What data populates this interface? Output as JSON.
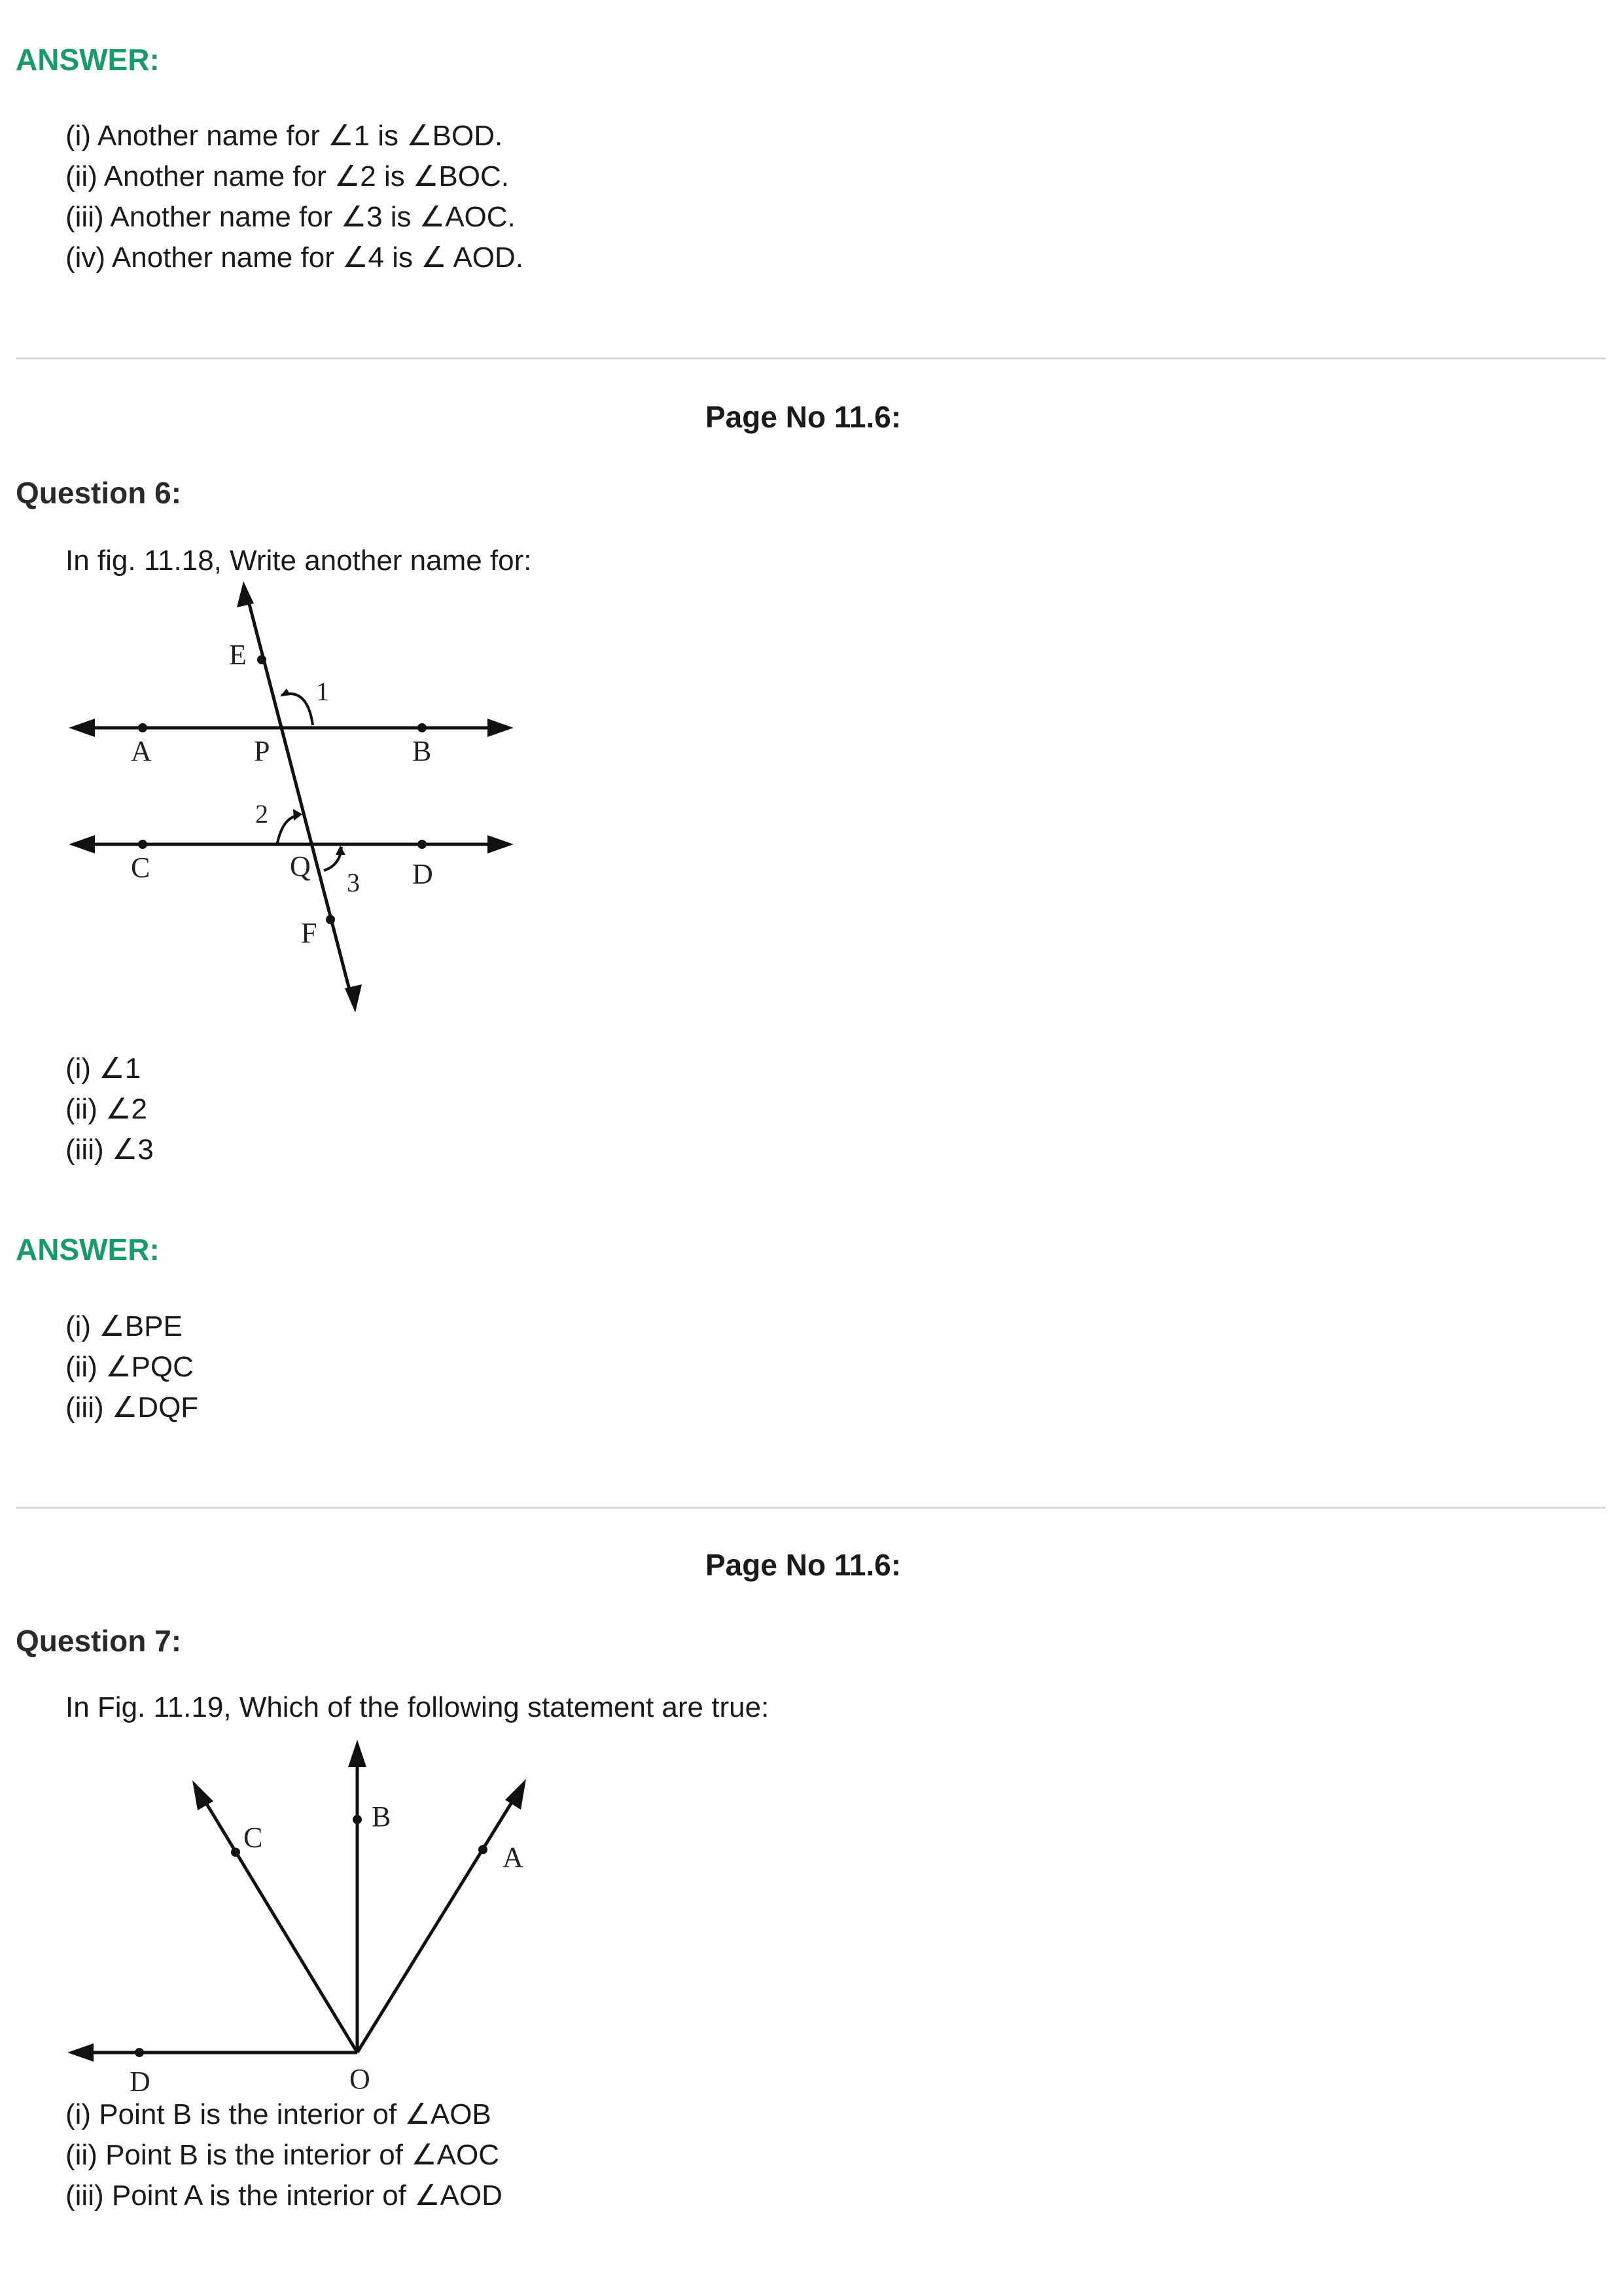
{
  "section1": {
    "answer_heading": "ANSWER:",
    "answers": [
      "(i) Another name for ∠1 is ∠BOD.",
      "(ii) Another name for ∠2 is ∠BOC.",
      "(iii) Another name for ∠3 is ∠AOC.",
      "(iv) Another name for ∠4 is ∠ AOD."
    ]
  },
  "section2": {
    "page_no": "Page No 11.6:",
    "question_heading": "Question 6:",
    "question_text": "In fig. 11.18, Write another name for:",
    "figure_labels": {
      "E": "E",
      "one": "1",
      "A": "A",
      "P": "P",
      "B": "B",
      "two": "2",
      "C": "C",
      "Q": "Q",
      "three": "3",
      "D": "D",
      "F": "F"
    },
    "parts": [
      "(i) ∠1",
      "(ii) ∠2",
      "(iii) ∠3"
    ],
    "answer_heading": "ANSWER:",
    "answers": [
      "(i) ∠BPE",
      "(ii) ∠PQC",
      "(iii) ∠DQF"
    ]
  },
  "section3": {
    "page_no": "Page No 11.6:",
    "question_heading": "Question 7:",
    "question_text": "In Fig. 11.19, Which of the following statement are true:",
    "figure_labels": {
      "B": "B",
      "C": "C",
      "A": "A",
      "D": "D",
      "O": "O"
    },
    "statements": [
      "(i) Point B is the interior of ∠AOB",
      "(ii) Point B is the interior of ∠AOC",
      "(iii) Point A is the interior of ∠AOD"
    ]
  }
}
